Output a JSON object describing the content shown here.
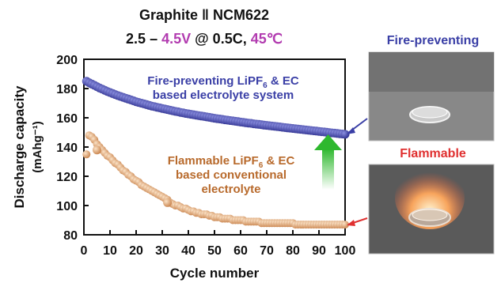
{
  "header": {
    "title": "Graphite ‖ NCM622",
    "cond_range_start": "2.5 – ",
    "cond_voltage": "4.5V",
    "cond_rate": " @ 0.5C, ",
    "cond_temp": "45℃"
  },
  "colors": {
    "blue_series": "#3a3fa6",
    "orange_series": "#d9a070",
    "accent_purple": "#b23cb0",
    "flammable_red": "#e03030",
    "arrow_green": "#3cbf3c"
  },
  "photos": {
    "top_label": "Fire-preventing",
    "bottom_label": "Flammable",
    "top_icon": "dish-icon",
    "bottom_icon": "burning-dish-icon"
  },
  "chart_data": {
    "type": "scatter",
    "xlabel": "Cycle number",
    "ylabel_line1": "Discharge capacity",
    "ylabel_line2": "(mAhg⁻¹)",
    "xlim": [
      0,
      100
    ],
    "ylim": [
      80,
      200
    ],
    "xticks": [
      0,
      10,
      20,
      30,
      40,
      50,
      60,
      70,
      80,
      90,
      100
    ],
    "yticks": [
      80,
      100,
      120,
      140,
      160,
      180,
      200
    ],
    "series": [
      {
        "key": "fire-preventing",
        "label_line1_prefix": "Fire-preventing LiPF",
        "label_line1_sub": "6",
        "label_line1_suffix": " & EC",
        "label_line2": "based electrolyte system",
        "x": [
          1,
          2,
          3,
          4,
          5,
          6,
          7,
          8,
          9,
          10,
          11,
          12,
          13,
          14,
          15,
          16,
          17,
          18,
          19,
          20,
          21,
          22,
          23,
          24,
          25,
          26,
          27,
          28,
          29,
          30,
          31,
          32,
          33,
          34,
          35,
          36,
          37,
          38,
          39,
          40,
          41,
          42,
          43,
          44,
          45,
          46,
          47,
          48,
          49,
          50,
          51,
          52,
          53,
          54,
          55,
          56,
          57,
          58,
          59,
          60,
          61,
          62,
          63,
          64,
          65,
          66,
          67,
          68,
          69,
          70,
          71,
          72,
          73,
          74,
          75,
          76,
          77,
          78,
          79,
          80,
          81,
          82,
          83,
          84,
          85,
          86,
          87,
          88,
          89,
          90,
          91,
          92,
          93,
          94,
          95,
          96,
          97,
          98,
          99,
          100
        ],
        "y": [
          185.0,
          184.0,
          183.1,
          182.2,
          181.3,
          180.4,
          179.6,
          178.8,
          178.0,
          177.3,
          176.6,
          175.9,
          175.2,
          174.6,
          174.0,
          173.4,
          172.8,
          172.2,
          171.6,
          171.0,
          170.5,
          170.0,
          169.5,
          169.0,
          168.5,
          168.0,
          167.6,
          167.2,
          166.8,
          166.4,
          166.0,
          165.6,
          165.2,
          164.8,
          164.4,
          164.1,
          163.7,
          163.4,
          163.0,
          162.7,
          162.4,
          162.1,
          161.8,
          161.5,
          161.2,
          160.9,
          160.6,
          160.3,
          160.0,
          159.7,
          159.4,
          159.2,
          158.9,
          158.6,
          158.4,
          158.1,
          157.9,
          157.6,
          157.4,
          157.1,
          156.9,
          156.6,
          156.4,
          156.2,
          155.9,
          155.7,
          155.5,
          155.3,
          155.0,
          154.8,
          154.6,
          154.4,
          154.2,
          154.0,
          153.8,
          153.5,
          153.3,
          153.1,
          152.9,
          152.7,
          152.5,
          152.3,
          152.1,
          151.9,
          151.7,
          151.5,
          151.3,
          151.1,
          150.9,
          150.7,
          150.5,
          150.3,
          150.1,
          149.9,
          149.7,
          149.5,
          149.3,
          149.1,
          148.9,
          148.7
        ]
      },
      {
        "key": "flammable",
        "label_line1_prefix": "Flammable LiPF",
        "label_line1_sub": "6",
        "label_line1_suffix": " & EC",
        "label_line2": "based conventional",
        "label_line3": "electrolyte",
        "x": [
          1,
          2,
          3,
          4,
          5,
          6,
          7,
          8,
          9,
          10,
          11,
          12,
          13,
          14,
          15,
          16,
          17,
          18,
          19,
          20,
          21,
          22,
          23,
          24,
          25,
          26,
          27,
          28,
          29,
          30,
          31,
          32,
          33,
          34,
          35,
          36,
          37,
          38,
          39,
          40,
          41,
          42,
          43,
          44,
          45,
          46,
          47,
          48,
          49,
          50,
          51,
          52,
          53,
          54,
          55,
          56,
          57,
          58,
          59,
          60,
          61,
          62,
          63,
          64,
          65,
          66,
          67,
          68,
          69,
          70,
          71,
          72,
          73,
          74,
          75,
          76,
          77,
          78,
          79,
          80,
          81,
          82,
          83,
          84,
          85,
          86,
          87,
          88,
          89,
          90,
          91,
          92,
          93,
          94,
          95,
          96,
          97,
          98,
          99,
          100
        ],
        "y": [
          135,
          148,
          147,
          145,
          142,
          140,
          138,
          136,
          134,
          133,
          131,
          129,
          128,
          126,
          124,
          123,
          121,
          120,
          118,
          117,
          116,
          114,
          113,
          112,
          111,
          110,
          109,
          108,
          107,
          106,
          105,
          104,
          102,
          101,
          100,
          100,
          99,
          98,
          98,
          97,
          96,
          96,
          95,
          95,
          94,
          94,
          94,
          93,
          93,
          92,
          92,
          92,
          91,
          91,
          91,
          91,
          90,
          90,
          90,
          90,
          90,
          89,
          89,
          89,
          89,
          89,
          89,
          88,
          88,
          88,
          88,
          88,
          88,
          88,
          88,
          88,
          88,
          88,
          88,
          88,
          87,
          87,
          87,
          87,
          87,
          87,
          87,
          87,
          87,
          87,
          87,
          87,
          87,
          87,
          87,
          87,
          87,
          87,
          87,
          87
        ]
      }
    ],
    "outliers": [
      {
        "x": 5,
        "y": 138
      },
      {
        "x": 32,
        "y": 102
      }
    ]
  }
}
